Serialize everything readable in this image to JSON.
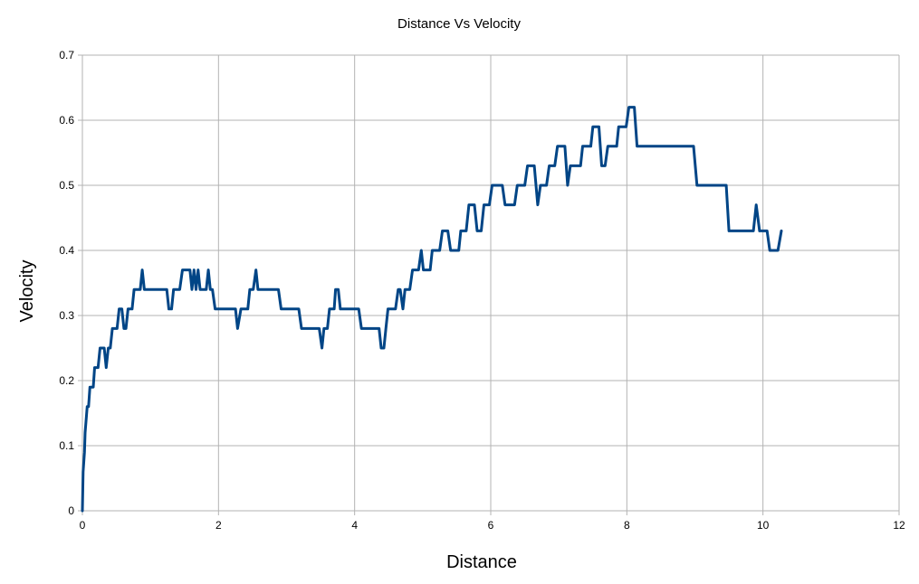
{
  "chart_data": {
    "type": "line",
    "title": "Distance Vs Velocity",
    "xlabel": "Distance",
    "ylabel": "Velocity",
    "xlim": [
      0,
      12
    ],
    "ylim": [
      0,
      0.7
    ],
    "x_ticks": [
      0,
      2,
      4,
      6,
      8,
      10,
      12
    ],
    "y_ticks": [
      0,
      0.1,
      0.2,
      0.3,
      0.4,
      0.5,
      0.6,
      0.7
    ],
    "x_tick_labels": [
      "0",
      "2",
      "4",
      "6",
      "8",
      "10",
      "12"
    ],
    "y_tick_labels": [
      "0",
      "0.1",
      "0.2",
      "0.3",
      "0.4",
      "0.5",
      "0.6",
      "0.7"
    ],
    "grid": true,
    "legend": "none",
    "series_color": "#004586",
    "series": [
      {
        "points": [
          [
            0.0,
            0.0
          ],
          [
            0.01,
            0.06
          ],
          [
            0.03,
            0.09
          ],
          [
            0.04,
            0.12
          ],
          [
            0.07,
            0.16
          ],
          [
            0.09,
            0.16
          ],
          [
            0.11,
            0.19
          ],
          [
            0.16,
            0.19
          ],
          [
            0.18,
            0.22
          ],
          [
            0.23,
            0.22
          ],
          [
            0.26,
            0.25
          ],
          [
            0.32,
            0.25
          ],
          [
            0.35,
            0.22
          ],
          [
            0.38,
            0.25
          ],
          [
            0.41,
            0.25
          ],
          [
            0.44,
            0.28
          ],
          [
            0.51,
            0.28
          ],
          [
            0.54,
            0.31
          ],
          [
            0.58,
            0.31
          ],
          [
            0.61,
            0.28
          ],
          [
            0.64,
            0.28
          ],
          [
            0.67,
            0.31
          ],
          [
            0.73,
            0.31
          ],
          [
            0.76,
            0.34
          ],
          [
            0.85,
            0.34
          ],
          [
            0.88,
            0.37
          ],
          [
            0.91,
            0.34
          ],
          [
            1.24,
            0.34
          ],
          [
            1.27,
            0.31
          ],
          [
            1.31,
            0.31
          ],
          [
            1.34,
            0.34
          ],
          [
            1.43,
            0.34
          ],
          [
            1.47,
            0.37
          ],
          [
            1.58,
            0.37
          ],
          [
            1.61,
            0.34
          ],
          [
            1.64,
            0.37
          ],
          [
            1.67,
            0.34
          ],
          [
            1.7,
            0.37
          ],
          [
            1.73,
            0.34
          ],
          [
            1.82,
            0.34
          ],
          [
            1.85,
            0.37
          ],
          [
            1.88,
            0.34
          ],
          [
            1.91,
            0.34
          ],
          [
            1.95,
            0.31
          ],
          [
            2.25,
            0.31
          ],
          [
            2.28,
            0.28
          ],
          [
            2.33,
            0.31
          ],
          [
            2.43,
            0.31
          ],
          [
            2.46,
            0.34
          ],
          [
            2.51,
            0.34
          ],
          [
            2.55,
            0.37
          ],
          [
            2.58,
            0.34
          ],
          [
            2.88,
            0.34
          ],
          [
            2.92,
            0.31
          ],
          [
            3.18,
            0.31
          ],
          [
            3.22,
            0.28
          ],
          [
            3.48,
            0.28
          ],
          [
            3.52,
            0.25
          ],
          [
            3.55,
            0.28
          ],
          [
            3.6,
            0.28
          ],
          [
            3.63,
            0.31
          ],
          [
            3.7,
            0.31
          ],
          [
            3.72,
            0.34
          ],
          [
            3.76,
            0.34
          ],
          [
            3.79,
            0.31
          ],
          [
            4.06,
            0.31
          ],
          [
            4.1,
            0.28
          ],
          [
            4.36,
            0.28
          ],
          [
            4.39,
            0.25
          ],
          [
            4.43,
            0.25
          ],
          [
            4.46,
            0.28
          ],
          [
            4.49,
            0.31
          ],
          [
            4.6,
            0.31
          ],
          [
            4.64,
            0.34
          ],
          [
            4.67,
            0.34
          ],
          [
            4.71,
            0.31
          ],
          [
            4.74,
            0.34
          ],
          [
            4.81,
            0.34
          ],
          [
            4.85,
            0.37
          ],
          [
            4.94,
            0.37
          ],
          [
            4.98,
            0.4
          ],
          [
            5.01,
            0.37
          ],
          [
            5.11,
            0.37
          ],
          [
            5.14,
            0.4
          ],
          [
            5.25,
            0.4
          ],
          [
            5.29,
            0.43
          ],
          [
            5.37,
            0.43
          ],
          [
            5.41,
            0.4
          ],
          [
            5.53,
            0.4
          ],
          [
            5.56,
            0.43
          ],
          [
            5.64,
            0.43
          ],
          [
            5.68,
            0.47
          ],
          [
            5.76,
            0.47
          ],
          [
            5.8,
            0.43
          ],
          [
            5.86,
            0.43
          ],
          [
            5.9,
            0.47
          ],
          [
            5.98,
            0.47
          ],
          [
            6.02,
            0.5
          ],
          [
            6.17,
            0.5
          ],
          [
            6.21,
            0.47
          ],
          [
            6.35,
            0.47
          ],
          [
            6.39,
            0.5
          ],
          [
            6.5,
            0.5
          ],
          [
            6.54,
            0.53
          ],
          [
            6.64,
            0.53
          ],
          [
            6.69,
            0.47
          ],
          [
            6.73,
            0.5
          ],
          [
            6.82,
            0.5
          ],
          [
            6.86,
            0.53
          ],
          [
            6.94,
            0.53
          ],
          [
            6.98,
            0.56
          ],
          [
            7.09,
            0.56
          ],
          [
            7.13,
            0.5
          ],
          [
            7.17,
            0.53
          ],
          [
            7.32,
            0.53
          ],
          [
            7.35,
            0.56
          ],
          [
            7.47,
            0.56
          ],
          [
            7.5,
            0.59
          ],
          [
            7.59,
            0.59
          ],
          [
            7.63,
            0.53
          ],
          [
            7.68,
            0.53
          ],
          [
            7.72,
            0.56
          ],
          [
            7.85,
            0.56
          ],
          [
            7.88,
            0.59
          ],
          [
            7.99,
            0.59
          ],
          [
            8.03,
            0.62
          ],
          [
            8.11,
            0.62
          ],
          [
            8.15,
            0.56
          ],
          [
            8.98,
            0.56
          ],
          [
            9.03,
            0.5
          ],
          [
            9.46,
            0.5
          ],
          [
            9.5,
            0.43
          ],
          [
            9.86,
            0.43
          ],
          [
            9.9,
            0.47
          ],
          [
            9.95,
            0.43
          ],
          [
            10.06,
            0.43
          ],
          [
            10.1,
            0.4
          ],
          [
            10.22,
            0.4
          ],
          [
            10.27,
            0.43
          ]
        ]
      }
    ]
  }
}
